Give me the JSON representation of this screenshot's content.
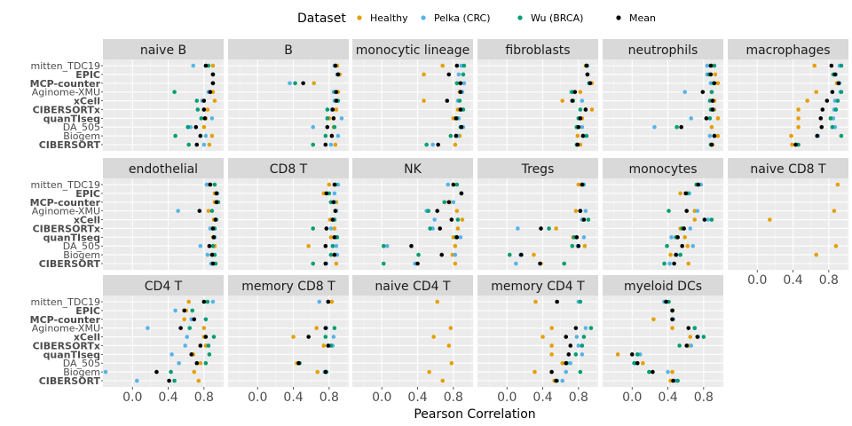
{
  "chart_data": {
    "type": "scatter",
    "xlabel": "Pearson Correlation",
    "ylabel": "",
    "xlim": [
      -0.33,
      1.02
    ],
    "x_ticks": [
      0.0,
      0.4,
      0.8
    ],
    "x_tick_labels": [
      "0.0",
      "0.4",
      "0.8"
    ],
    "legend": {
      "title": "Dataset",
      "position": "top",
      "entries": [
        {
          "name": "Healthy",
          "color": "#E69F00"
        },
        {
          "name": "Pelka (CRC)",
          "color": "#56B4E9"
        },
        {
          "name": "Wu (BRCA)",
          "color": "#009E73"
        },
        {
          "name": "Mean",
          "color": "#000000"
        }
      ]
    },
    "methods": [
      "mitten_TDC19",
      "EPIC",
      "MCP-counter",
      "Aginome-XMU",
      "xCell",
      "CIBERSORTx",
      "quanTIseq",
      "DA_505",
      "Biogem",
      "CIBERSORT"
    ],
    "bold_methods": [
      "EPIC",
      "MCP-counter",
      "xCell",
      "CIBERSORTx",
      "quanTIseq",
      "CIBERSORT"
    ],
    "series_order": [
      "Healthy",
      "Pelka (CRC)",
      "Wu (BRCA)",
      "Mean"
    ],
    "panels": [
      {
        "title": "naive B",
        "values": [
          [
            0.9,
            0.68,
            0.85,
            0.82
          ],
          [
            0.9,
            0.9,
            0.9,
            0.9
          ],
          [
            0.9,
            0.9,
            0.9,
            0.9
          ],
          [
            0.9,
            0.85,
            0.47,
            0.87
          ],
          [
            0.92,
            0.78,
            0.72,
            0.8
          ],
          [
            0.84,
            0.8,
            0.73,
            0.8
          ],
          [
            0.82,
            0.89,
            0.77,
            0.81
          ],
          [
            0.8,
            0.65,
            0.62,
            0.71
          ],
          [
            0.89,
            0.82,
            0.48,
            0.76
          ],
          [
            0.86,
            0.8,
            0.63,
            0.72
          ]
        ]
      },
      {
        "title": "B",
        "values": [
          [
            0.89,
            0.86,
            0.87,
            0.87
          ],
          [
            0.92,
            0.89,
            0.9,
            0.9
          ],
          [
            0.63,
            0.36,
            0.42,
            0.51
          ],
          [
            0.9,
            0.85,
            0.87,
            0.88
          ],
          [
            0.88,
            0.86,
            0.9,
            0.88
          ],
          [
            0.88,
            0.83,
            0.78,
            0.84
          ],
          [
            0.8,
            0.94,
            0.78,
            0.85
          ],
          [
            0.85,
            0.62,
            0.86,
            0.78
          ],
          [
            0.83,
            0.9,
            0.76,
            0.83
          ],
          [
            0.87,
            0.82,
            0.62,
            0.76
          ]
        ]
      },
      {
        "title": "monocytic lineage",
        "values": [
          [
            0.68,
            0.89,
            0.92,
            0.84
          ],
          [
            0.47,
            0.86,
            0.91,
            0.75
          ],
          [
            0.88,
            0.92,
            0.84,
            0.88
          ],
          [
            0.87,
            0.9,
            0.88,
            0.88
          ],
          [
            0.47,
            0.85,
            0.87,
            0.73
          ],
          [
            0.85,
            0.89,
            0.91,
            0.88
          ],
          [
            0.8,
            0.86,
            0.84,
            0.83
          ],
          [
            0.89,
            0.91,
            0.88,
            0.89
          ],
          [
            0.87,
            0.85,
            0.77,
            0.83
          ],
          [
            0.82,
            0.57,
            0.5,
            0.63
          ]
        ]
      },
      {
        "title": "fibroblasts",
        "values": [
          [
            0.88,
            0.9,
            0.89,
            0.89
          ],
          [
            0.9,
            0.9,
            0.9,
            0.9
          ],
          [
            0.95,
            0.92,
            0.92,
            0.93
          ],
          [
            0.82,
            0.72,
            0.73,
            0.76
          ],
          [
            0.62,
            0.84,
            0.74,
            0.73
          ],
          [
            0.95,
            0.88,
            0.82,
            0.88
          ],
          [
            0.84,
            0.82,
            0.8,
            0.82
          ],
          [
            0.78,
            0.84,
            0.78,
            0.8
          ],
          [
            0.79,
            0.86,
            0.89,
            0.85
          ],
          [
            0.82,
            0.79,
            0.78,
            0.79
          ]
        ]
      },
      {
        "title": "neutrophils",
        "values": [
          [
            0.89,
            0.84,
            0.92,
            0.88
          ],
          [
            0.93,
            0.84,
            0.86,
            0.88
          ],
          [
            0.96,
            0.88,
            0.91,
            0.92
          ],
          [
            0.89,
            0.59,
            0.89,
            0.79
          ],
          [
            0.92,
            0.9,
            0.87,
            0.9
          ],
          [
            0.92,
            0.91,
            0.88,
            0.9
          ],
          [
            0.96,
            0.66,
            0.87,
            0.83
          ],
          [
            0.89,
            0.25,
            0.5,
            0.55
          ],
          [
            0.96,
            0.87,
            0.92,
            0.92
          ],
          [
            0.9,
            0.89,
            0.88,
            0.89
          ]
        ]
      },
      {
        "title": "macrophages",
        "values": [
          [
            0.64,
            0.92,
            0.94,
            0.83
          ],
          [
            0.87,
            0.88,
            0.85,
            0.87
          ],
          [
            0.89,
            0.92,
            0.91,
            0.91
          ],
          [
            0.66,
            0.93,
            0.94,
            0.84
          ],
          [
            0.56,
            0.87,
            0.9,
            0.78
          ],
          [
            0.46,
            0.86,
            0.88,
            0.73
          ],
          [
            0.46,
            0.85,
            0.82,
            0.71
          ],
          [
            0.46,
            0.87,
            0.84,
            0.72
          ],
          [
            0.38,
            0.68,
            0.94,
            0.67
          ],
          [
            0.39,
            0.43,
            0.46,
            0.43
          ]
        ]
      },
      {
        "title": "endothelial",
        "values": [
          [
            0.85,
            0.83,
            0.92,
            0.87
          ],
          [
            0.92,
            0.95,
            0.94,
            0.94
          ],
          [
            0.92,
            0.94,
            0.96,
            0.94
          ],
          [
            0.85,
            0.51,
            0.89,
            0.75
          ],
          [
            0.91,
            0.94,
            0.93,
            0.93
          ],
          [
            0.9,
            0.87,
            0.92,
            0.9
          ],
          [
            0.9,
            0.92,
            0.91,
            0.91
          ],
          [
            0.92,
            0.76,
            0.9,
            0.86
          ],
          [
            0.9,
            0.84,
            0.92,
            0.89
          ],
          [
            0.9,
            0.88,
            0.93,
            0.9
          ]
        ]
      },
      {
        "title": "CD8 T",
        "values": [
          [
            0.8,
            0.9,
            0.87,
            0.86
          ],
          [
            0.74,
            0.86,
            0.8,
            0.77
          ],
          [
            0.88,
            0.86,
            0.82,
            0.85
          ],
          [
            0.88,
            0.88,
            0.87,
            0.87
          ],
          [
            0.81,
            0.86,
            0.86,
            0.84
          ],
          [
            0.86,
            0.82,
            0.62,
            0.77
          ],
          [
            0.82,
            0.88,
            0.89,
            0.86
          ],
          [
            0.57,
            0.88,
            0.84,
            0.76
          ],
          [
            0.86,
            0.89,
            0.82,
            0.86
          ],
          [
            0.88,
            0.77,
            0.62,
            0.76
          ]
        ]
      },
      {
        "title": "NK",
        "values": [
          [
            0.8,
            0.74,
            0.84,
            0.8
          ],
          [
            0.89,
            0.89,
            0.89,
            0.89
          ],
          [
            0.76,
            0.8,
            0.7,
            0.75
          ],
          [
            0.84,
            0.5,
            0.52,
            0.62
          ],
          [
            0.9,
            0.59,
            0.85,
            0.78
          ],
          [
            0.85,
            0.57,
            0.54,
            0.65
          ],
          [
            0.8,
            0.88,
            0.83,
            0.84
          ],
          [
            0.82,
            0.06,
            0.02,
            0.33
          ],
          [
            0.79,
            0.82,
            0.41,
            0.67
          ],
          [
            0.82,
            0.37,
            0.02,
            0.4
          ]
        ]
      },
      {
        "title": "Tregs",
        "values": [
          [
            0.8,
            0.86,
            0.85,
            0.84
          ],
          [
            null,
            null,
            null,
            null
          ],
          [
            null,
            null,
            null,
            null
          ],
          [
            0.77,
            0.88,
            0.82,
            0.82
          ],
          [
            0.84,
            0.84,
            0.91,
            0.86
          ],
          [
            0.55,
            0.12,
            0.47,
            0.38
          ],
          [
            0.74,
            0.86,
            0.75,
            0.78
          ],
          [
            0.87,
            0.79,
            0.73,
            0.8
          ],
          [
            0.3,
            0.15,
            0.03,
            0.16
          ],
          [
            0.38,
            0.1,
            0.64,
            0.37
          ]
        ]
      },
      {
        "title": "monocytes",
        "values": [
          [
            0.72,
            0.77,
            0.72,
            0.74
          ],
          [
            0.54,
            0.64,
            0.62,
            0.6
          ],
          [
            null,
            null,
            null,
            null
          ],
          [
            0.7,
            0.73,
            0.41,
            0.61
          ],
          [
            0.7,
            0.85,
            0.89,
            0.81
          ],
          [
            0.54,
            0.65,
            0.56,
            0.58
          ],
          [
            0.59,
            0.44,
            0.49,
            0.51
          ],
          [
            0.62,
            0.68,
            0.39,
            0.56
          ],
          [
            0.43,
            0.5,
            0.54,
            0.49
          ],
          [
            0.63,
            0.42,
            0.36,
            0.47
          ]
        ]
      },
      {
        "title": "naive CD8 T",
        "values": [
          [
            0.9,
            null,
            null,
            null
          ],
          [
            null,
            null,
            null,
            null
          ],
          [
            null,
            null,
            null,
            null
          ],
          [
            0.86,
            null,
            null,
            null
          ],
          [
            0.14,
            null,
            null,
            null
          ],
          [
            null,
            null,
            null,
            null
          ],
          [
            null,
            null,
            null,
            null
          ],
          [
            0.88,
            null,
            null,
            null
          ],
          [
            0.66,
            null,
            null,
            null
          ],
          [
            null,
            null,
            null,
            null
          ]
        ]
      },
      {
        "title": "CD4 T",
        "values": [
          [
            0.63,
            0.9,
            0.84,
            0.8
          ],
          [
            0.6,
            0.48,
            0.67,
            0.58
          ],
          [
            0.58,
            0.66,
            0.82,
            0.69
          ],
          [
            0.8,
            0.17,
            0.64,
            0.54
          ],
          [
            0.8,
            0.61,
            0.91,
            0.82
          ],
          [
            0.82,
            0.59,
            0.85,
            0.76
          ],
          [
            0.68,
            0.44,
            0.86,
            0.66
          ],
          [
            0.76,
            0.52,
            0.82,
            0.72
          ],
          [
            0.69,
            -0.3,
            0.43,
            0.27
          ],
          [
            0.74,
            0.05,
            0.47,
            0.41
          ]
        ]
      },
      {
        "title": "memory CD8 T",
        "values": [
          [
            0.83,
            0.69,
            0.79,
            0.79
          ],
          [
            null,
            null,
            null,
            null
          ],
          [
            null,
            null,
            null,
            null
          ],
          [
            0.66,
            0.77,
            0.86,
            0.76
          ],
          [
            0.4,
            0.85,
            0.76,
            0.57
          ],
          [
            0.74,
            0.84,
            0.82,
            0.79
          ],
          [
            null,
            null,
            null,
            null
          ],
          [
            0.44,
            0.46,
            0.47,
            0.46
          ],
          [
            0.67,
            0.75,
            0.77,
            0.76
          ],
          [
            null,
            null,
            null,
            null
          ]
        ]
      },
      {
        "title": "naive CD4 T",
        "values": [
          [
            0.62,
            null,
            null,
            null
          ],
          [
            null,
            null,
            null,
            null
          ],
          [
            null,
            null,
            null,
            null
          ],
          [
            0.77,
            null,
            null,
            null
          ],
          [
            0.58,
            null,
            null,
            null
          ],
          [
            0.75,
            null,
            null,
            null
          ],
          [
            null,
            null,
            null,
            null
          ],
          [
            0.78,
            null,
            null,
            null
          ],
          [
            0.53,
            null,
            null,
            null
          ],
          [
            0.68,
            null,
            null,
            null
          ]
        ]
      },
      {
        "title": "memory CD4 T",
        "values": [
          [
            0.32,
            0.8,
            0.82,
            0.56
          ],
          [
            null,
            null,
            null,
            null
          ],
          [
            null,
            null,
            null,
            null
          ],
          [
            0.5,
            0.88,
            0.94,
            0.77
          ],
          [
            0.4,
            0.78,
            0.86,
            0.66
          ],
          [
            0.5,
            0.8,
            0.84,
            0.71
          ],
          [
            0.5,
            0.84,
            0.77,
            0.69
          ],
          [
            0.62,
            0.71,
            0.67,
            0.66
          ],
          [
            0.31,
            0.66,
            0.82,
            0.5
          ],
          [
            0.53,
            0.62,
            0.56,
            0.55
          ]
        ]
      },
      {
        "title": "myeloid DCs",
        "values": [
          [
            0.36,
            0.36,
            0.41,
            0.38
          ],
          [
            0.45,
            0.45,
            0.45,
            0.45
          ],
          [
            0.24,
            0.46,
            0.45,
            0.45
          ],
          [
            0.45,
            0.7,
            0.7,
            0.63
          ],
          [
            0.65,
            0.74,
            0.8,
            0.73
          ],
          [
            0.63,
            0.66,
            0.53,
            0.61
          ],
          [
            -0.16,
            0.09,
            0.06,
            0.0
          ],
          [
            0.12,
            0.02,
            0.03,
            0.06
          ],
          [
            0.45,
            0.4,
            0.19,
            0.23
          ],
          [
            0.43,
            0.49,
            0.51,
            0.46
          ]
        ]
      }
    ]
  }
}
